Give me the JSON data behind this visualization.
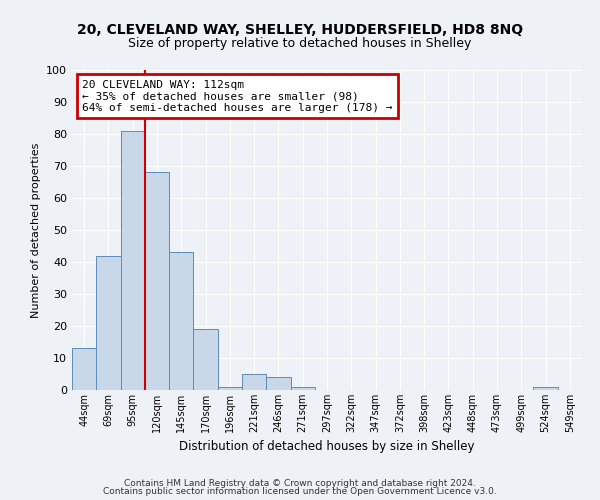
{
  "title_line1": "20, CLEVELAND WAY, SHELLEY, HUDDERSFIELD, HD8 8NQ",
  "title_line2": "Size of property relative to detached houses in Shelley",
  "bar_labels": [
    "44sqm",
    "69sqm",
    "95sqm",
    "120sqm",
    "145sqm",
    "170sqm",
    "196sqm",
    "221sqm",
    "246sqm",
    "271sqm",
    "297sqm",
    "322sqm",
    "347sqm",
    "372sqm",
    "398sqm",
    "423sqm",
    "448sqm",
    "473sqm",
    "499sqm",
    "524sqm",
    "549sqm"
  ],
  "bar_values": [
    13,
    42,
    81,
    68,
    43,
    19,
    1,
    5,
    4,
    1,
    0,
    0,
    0,
    0,
    0,
    0,
    0,
    0,
    0,
    1,
    0
  ],
  "bar_color": "#c8d8e8",
  "bar_edge_color": "#5b8db8",
  "ylim": [
    0,
    100
  ],
  "yticks": [
    0,
    10,
    20,
    30,
    40,
    50,
    60,
    70,
    80,
    90,
    100
  ],
  "ylabel": "Number of detached properties",
  "xlabel": "Distribution of detached houses by size in Shelley",
  "vline_x": 3.0,
  "vline_color": "#cc0000",
  "annotation_title": "20 CLEVELAND WAY: 112sqm",
  "annotation_line2": "← 35% of detached houses are smaller (98)",
  "annotation_line3": "64% of semi-detached houses are larger (178) →",
  "annotation_box_edgecolor": "#cc0000",
  "footer_line1": "Contains HM Land Registry data © Crown copyright and database right 2024.",
  "footer_line2": "Contains public sector information licensed under the Open Government Licence v3.0.",
  "bg_color": "#eef2f7",
  "grid_color": "#ffffff"
}
